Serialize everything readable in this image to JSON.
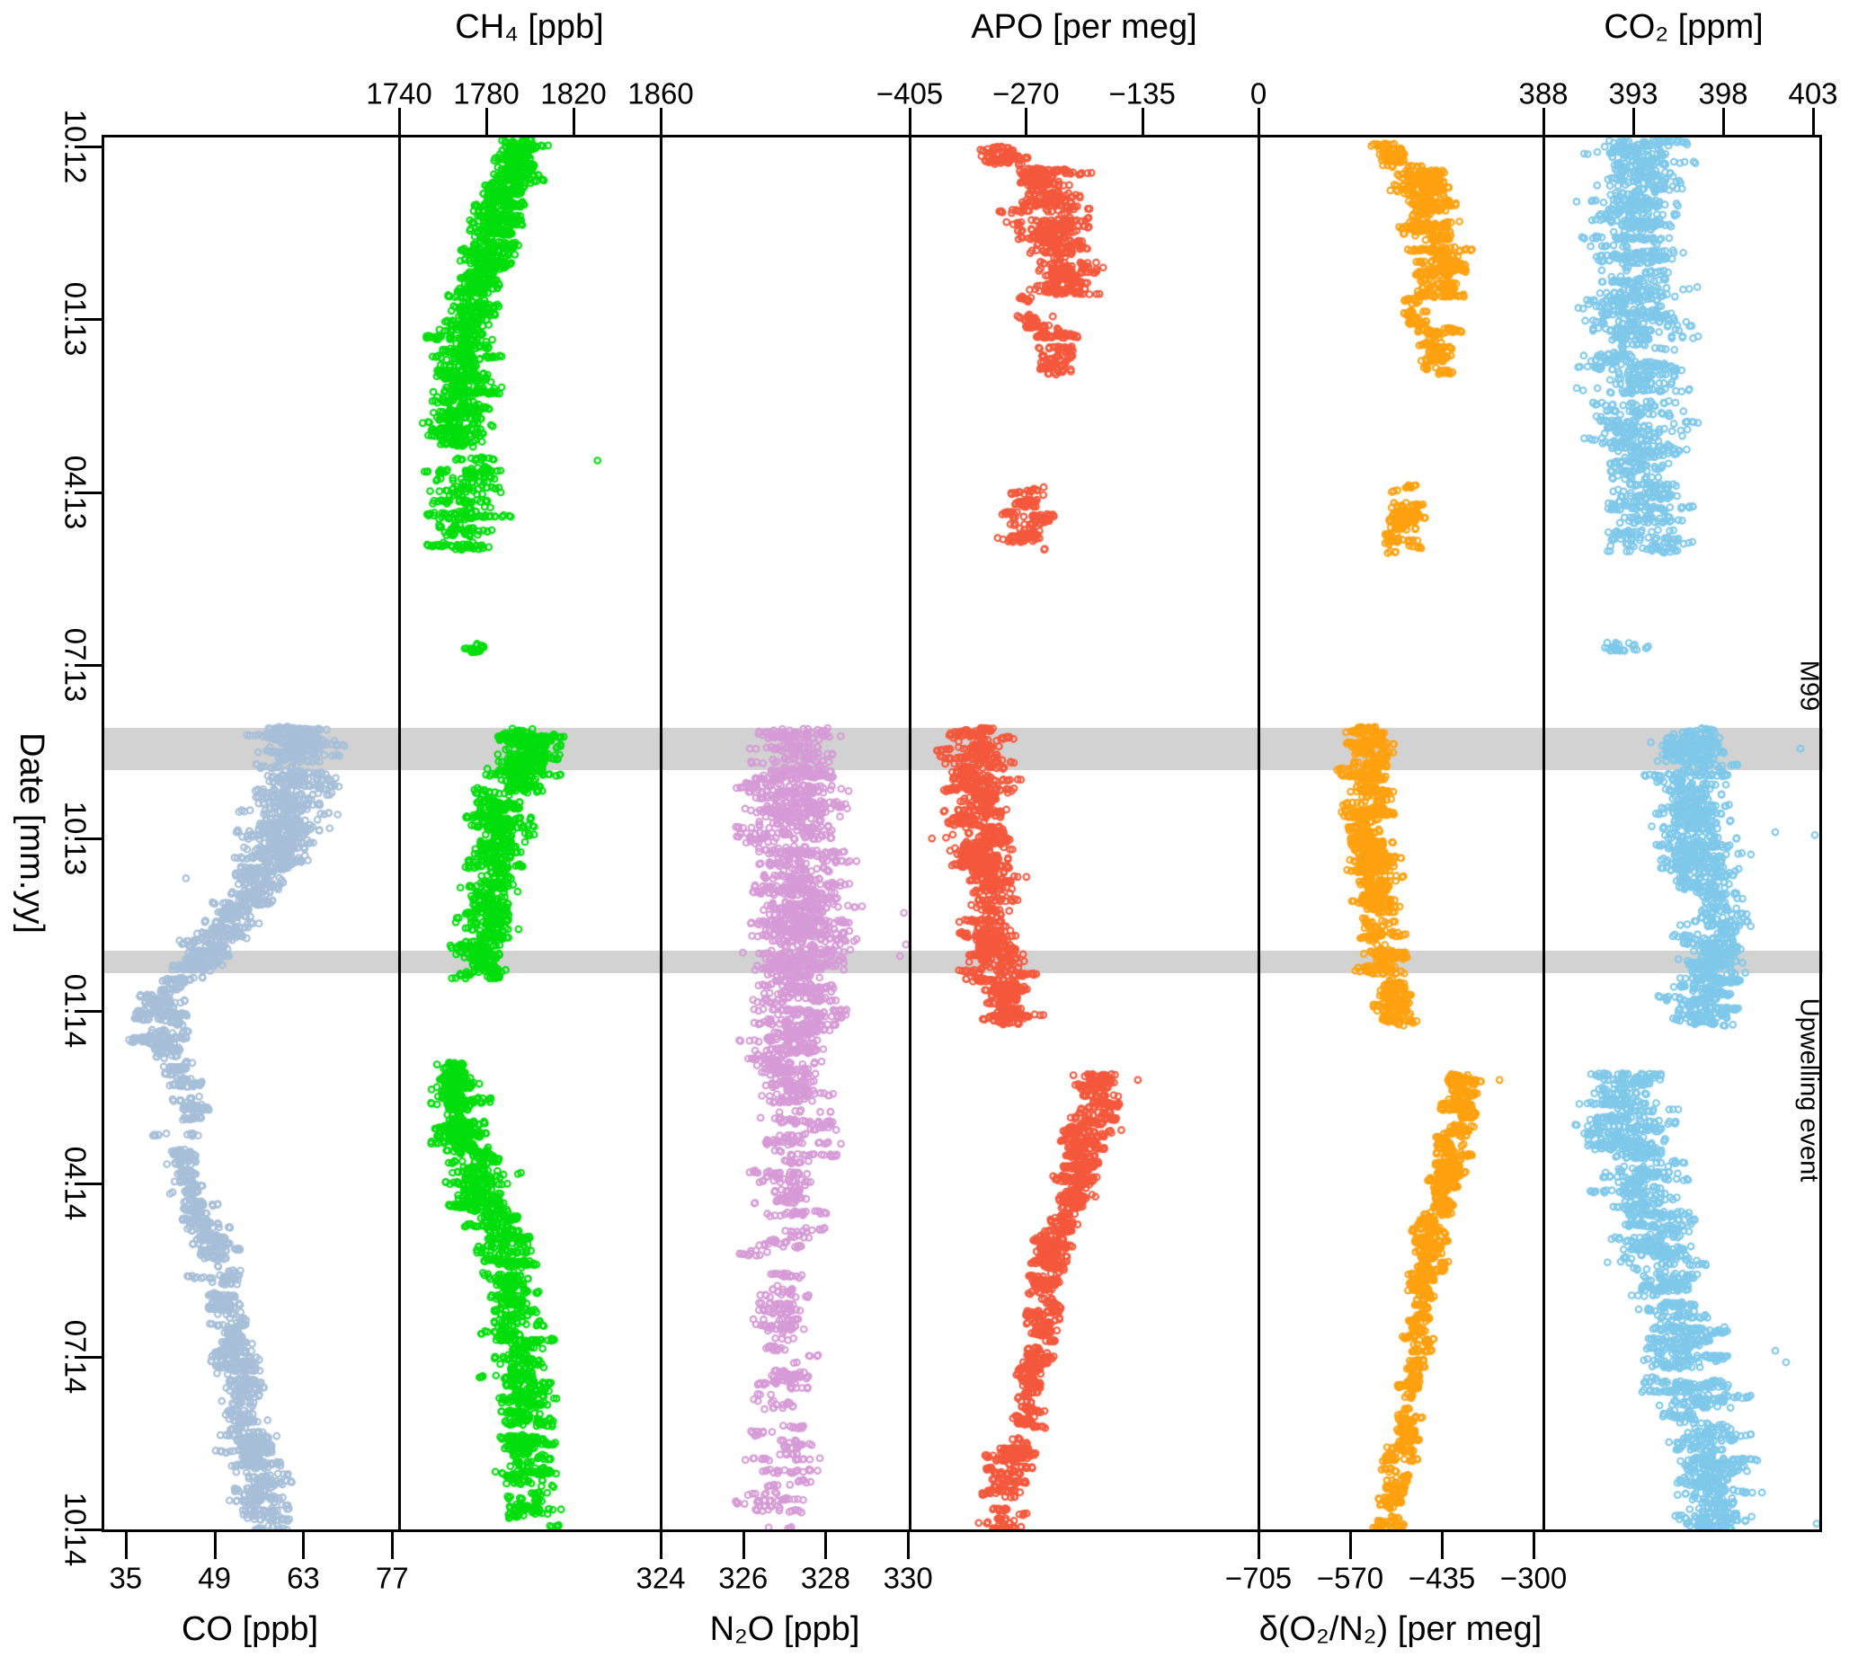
{
  "chart_data": {
    "type": "scatter",
    "orientation": "time-on-y",
    "grid": false,
    "legend": "none",
    "date_axis": {
      "label": "Date [mm.yy]",
      "side": "left",
      "tick_labels": [
        "10.12",
        "01.13",
        "04.13",
        "07.13",
        "10.13",
        "01.14",
        "04.14",
        "07.14",
        "10.14"
      ],
      "tick_months": [
        0,
        3,
        6,
        9,
        12,
        15,
        18,
        21,
        24
      ],
      "range_months": [
        -0.2,
        24.05
      ]
    },
    "bands": [
      {
        "label": "M99",
        "m0": 10.09,
        "m1": 10.82
      },
      {
        "label": "Upwelling event",
        "m0": 13.96,
        "m1": 14.35
      }
    ],
    "band_color": "#d2d2d2",
    "panels": [
      {
        "id": "co",
        "title": "CO [ppb]",
        "axis_side": "bottom",
        "color": "#A7BFD8",
        "ticks": [
          "35",
          "49",
          "63",
          "77"
        ],
        "tick_values": [
          35,
          49,
          63,
          77
        ],
        "range": [
          31.2,
          78.1
        ],
        "segments": [
          [
            10.09,
            11.0,
            61,
            62,
            4.2,
            380
          ],
          [
            11.0,
            12.2,
            62,
            59,
            4.0,
            420
          ],
          [
            12.2,
            13.0,
            58,
            55,
            3.2,
            260
          ],
          [
            13.0,
            13.96,
            54,
            48,
            2.8,
            240
          ],
          [
            13.96,
            14.6,
            48,
            43,
            2.4,
            200
          ],
          [
            14.6,
            15.6,
            41.5,
            40.5,
            2.4,
            260
          ],
          [
            15.6,
            16.3,
            41,
            44,
            2.0,
            130
          ],
          [
            16.5,
            16.9,
            45.5,
            46,
            2.0,
            60
          ],
          [
            17.1,
            18.4,
            43.5,
            46.5,
            2.2,
            150
          ],
          [
            18.4,
            19.6,
            47,
            50,
            2.2,
            220
          ],
          [
            19.6,
            21.0,
            50,
            52,
            2.4,
            240
          ],
          [
            21.0,
            22.4,
            52,
            54,
            2.5,
            260
          ],
          [
            22.4,
            24.0,
            54.5,
            57,
            2.8,
            380
          ]
        ],
        "outliers": [
          [
            12.7,
            44.5
          ]
        ]
      },
      {
        "id": "ch4",
        "title": "CH₄ [ppb]",
        "axis_side": "top",
        "color": "#00DE0C",
        "ticks": [
          "1740",
          "1780",
          "1820",
          "1860"
        ],
        "tick_values": [
          1740,
          1780,
          1820,
          1860
        ],
        "range": [
          1740,
          1860
        ],
        "segments": [
          [
            -0.1,
            0.8,
            1797,
            1791,
            7,
            380
          ],
          [
            0.8,
            2.2,
            1790,
            1779,
            8,
            520
          ],
          [
            2.2,
            5.2,
            1775,
            1766,
            9,
            850
          ],
          [
            5.4,
            7.0,
            1770,
            1768,
            11,
            300
          ],
          [
            8.62,
            8.8,
            1775,
            1775,
            3,
            28
          ],
          [
            10.09,
            11.2,
            1800,
            1796,
            10,
            420
          ],
          [
            11.2,
            12.6,
            1788,
            1785,
            9,
            420
          ],
          [
            12.6,
            13.96,
            1783,
            1779,
            8,
            330
          ],
          [
            13.96,
            14.45,
            1778,
            1776,
            8,
            150
          ],
          [
            15.9,
            17.3,
            1764,
            1768,
            8,
            480
          ],
          [
            17.3,
            18.6,
            1773,
            1782,
            9,
            360
          ],
          [
            18.6,
            20.0,
            1786,
            1791,
            8,
            320
          ],
          [
            20.0,
            21.5,
            1793,
            1795,
            8,
            320
          ],
          [
            21.5,
            24.0,
            1797,
            1801,
            8,
            480
          ]
        ],
        "outliers": [
          [
            5.45,
            1831
          ]
        ]
      },
      {
        "id": "n2o",
        "title": "N₂O [ppb]",
        "axis_side": "bottom",
        "color": "#D69BD6",
        "ticks": [
          "324",
          "326",
          "328",
          "330"
        ],
        "tick_values": [
          324,
          326,
          328,
          330
        ],
        "range": [
          324,
          330.04
        ],
        "segments": [
          [
            10.09,
            10.9,
            327.3,
            327.3,
            0.6,
            220
          ],
          [
            10.9,
            12.4,
            327.2,
            327.2,
            0.8,
            480
          ],
          [
            12.4,
            13.6,
            327.3,
            327.4,
            0.75,
            420
          ],
          [
            13.6,
            14.45,
            327.6,
            327.5,
            0.8,
            300
          ],
          [
            14.45,
            15.8,
            327.3,
            327.2,
            0.7,
            400
          ],
          [
            15.8,
            16.6,
            327.0,
            327.1,
            0.6,
            190
          ],
          [
            16.6,
            18.0,
            327.2,
            327.1,
            0.6,
            170
          ],
          [
            18.0,
            19.3,
            327.1,
            327.0,
            0.55,
            140
          ],
          [
            19.3,
            20.6,
            326.9,
            327.0,
            0.5,
            120
          ],
          [
            20.6,
            22.0,
            327.0,
            327.0,
            0.5,
            110
          ],
          [
            22.0,
            24.0,
            327.0,
            327.1,
            0.55,
            150
          ]
        ],
        "outliers": [
          [
            13.85,
            329.95
          ],
          [
            14.05,
            329.8
          ],
          [
            13.3,
            329.9
          ]
        ]
      },
      {
        "id": "apo",
        "title": "APO [per meg]",
        "axis_side": "top",
        "color": "#F4583C",
        "ticks": [
          "−405",
          "−270",
          "−135",
          "0"
        ],
        "tick_values": [
          -405,
          -270,
          -135,
          0
        ],
        "range": [
          -405,
          0
        ],
        "segments": [
          [
            -0.05,
            0.35,
            -300,
            -290,
            16,
            90
          ],
          [
            0.35,
            1.6,
            -250,
            -240,
            28,
            380
          ],
          [
            1.6,
            2.6,
            -230,
            -225,
            24,
            280
          ],
          [
            2.6,
            3.15,
            -262,
            -258,
            13,
            60
          ],
          [
            3.15,
            3.95,
            -235,
            -228,
            20,
            140
          ],
          [
            5.9,
            7.05,
            -268,
            -272,
            18,
            170
          ],
          [
            10.09,
            11.5,
            -330,
            -325,
            24,
            380
          ],
          [
            11.5,
            12.8,
            -328,
            -318,
            27,
            400
          ],
          [
            12.8,
            14.5,
            -315,
            -305,
            24,
            400
          ],
          [
            14.5,
            15.25,
            -295,
            -285,
            20,
            210
          ],
          [
            16.1,
            17.2,
            -185,
            -195,
            18,
            280
          ],
          [
            17.2,
            18.5,
            -205,
            -220,
            18,
            320
          ],
          [
            18.5,
            19.8,
            -232,
            -245,
            16,
            290
          ],
          [
            19.8,
            21.2,
            -250,
            -258,
            14,
            210
          ],
          [
            21.2,
            22.5,
            -265,
            -272,
            13,
            170
          ],
          [
            22.5,
            24.0,
            -285,
            -298,
            16,
            240
          ]
        ],
        "outliers": [
          [
            16.2,
            -140
          ]
        ]
      },
      {
        "id": "do2n2",
        "title": "δ(O₂/N₂) [per meg]",
        "axis_side": "bottom",
        "color": "#FFA110",
        "ticks": [
          "−705",
          "−570",
          "−435",
          "−300"
        ],
        "tick_values": [
          -705,
          -570,
          -435,
          -300
        ],
        "range": [
          -705,
          -285.5
        ],
        "segments": [
          [
            -0.05,
            0.35,
            -515,
            -505,
            15,
            90
          ],
          [
            0.35,
            1.6,
            -462,
            -450,
            26,
            380
          ],
          [
            1.6,
            2.6,
            -440,
            -432,
            24,
            280
          ],
          [
            2.6,
            3.15,
            -472,
            -468,
            13,
            60
          ],
          [
            3.15,
            3.95,
            -445,
            -438,
            19,
            140
          ],
          [
            5.9,
            7.05,
            -488,
            -492,
            17,
            170
          ],
          [
            10.09,
            11.5,
            -548,
            -542,
            22,
            380
          ],
          [
            11.5,
            12.8,
            -545,
            -535,
            25,
            400
          ],
          [
            12.8,
            14.5,
            -532,
            -522,
            22,
            400
          ],
          [
            14.5,
            15.25,
            -512,
            -502,
            19,
            210
          ],
          [
            16.1,
            17.2,
            -405,
            -412,
            17,
            280
          ],
          [
            17.2,
            18.5,
            -422,
            -437,
            17,
            320
          ],
          [
            18.5,
            19.8,
            -448,
            -460,
            15,
            290
          ],
          [
            19.8,
            21.2,
            -465,
            -472,
            13,
            210
          ],
          [
            21.2,
            22.5,
            -478,
            -486,
            12,
            170
          ],
          [
            22.5,
            24.0,
            -498,
            -515,
            15,
            240
          ]
        ],
        "outliers": [
          [
            16.2,
            -350
          ]
        ]
      },
      {
        "id": "co2",
        "title": "CO₂ [ppm]",
        "axis_side": "top",
        "color": "#7FC8EA",
        "ticks": [
          "388",
          "393",
          "398",
          "403"
        ],
        "tick_values": [
          388,
          393,
          398,
          403
        ],
        "range": [
          388,
          403.65
        ],
        "segments": [
          [
            -0.1,
            2.2,
            393.3,
            393.0,
            1.6,
            650
          ],
          [
            2.2,
            5.3,
            393.0,
            393.2,
            1.7,
            750
          ],
          [
            5.3,
            7.05,
            393.4,
            393.3,
            1.5,
            330
          ],
          [
            8.62,
            8.8,
            392.3,
            392.5,
            0.9,
            30
          ],
          [
            10.09,
            11.5,
            396.4,
            396.3,
            1.3,
            400
          ],
          [
            11.5,
            12.8,
            396.2,
            396.6,
            1.4,
            400
          ],
          [
            12.8,
            14.5,
            397.2,
            397.4,
            1.2,
            400
          ],
          [
            14.5,
            15.3,
            397.0,
            396.8,
            1.3,
            210
          ],
          [
            16.1,
            17.3,
            392.4,
            392.8,
            1.6,
            320
          ],
          [
            17.3,
            18.6,
            393.2,
            393.8,
            1.5,
            340
          ],
          [
            18.6,
            20.0,
            394.3,
            394.8,
            1.5,
            310
          ],
          [
            20.0,
            21.3,
            395.3,
            395.8,
            1.5,
            290
          ],
          [
            21.3,
            22.6,
            396.2,
            396.7,
            1.5,
            290
          ],
          [
            22.6,
            24.0,
            397.2,
            397.6,
            1.4,
            380
          ]
        ],
        "outliers": [
          [
            10.45,
            402.3
          ],
          [
            11.9,
            400.9
          ],
          [
            11.95,
            403.1
          ],
          [
            20.9,
            400.9
          ],
          [
            21.1,
            401.5
          ],
          [
            23.9,
            403.2
          ]
        ]
      }
    ],
    "marker": {
      "style": "open-circle",
      "radius_px": 3.3,
      "stroke_px": 2.1
    }
  }
}
